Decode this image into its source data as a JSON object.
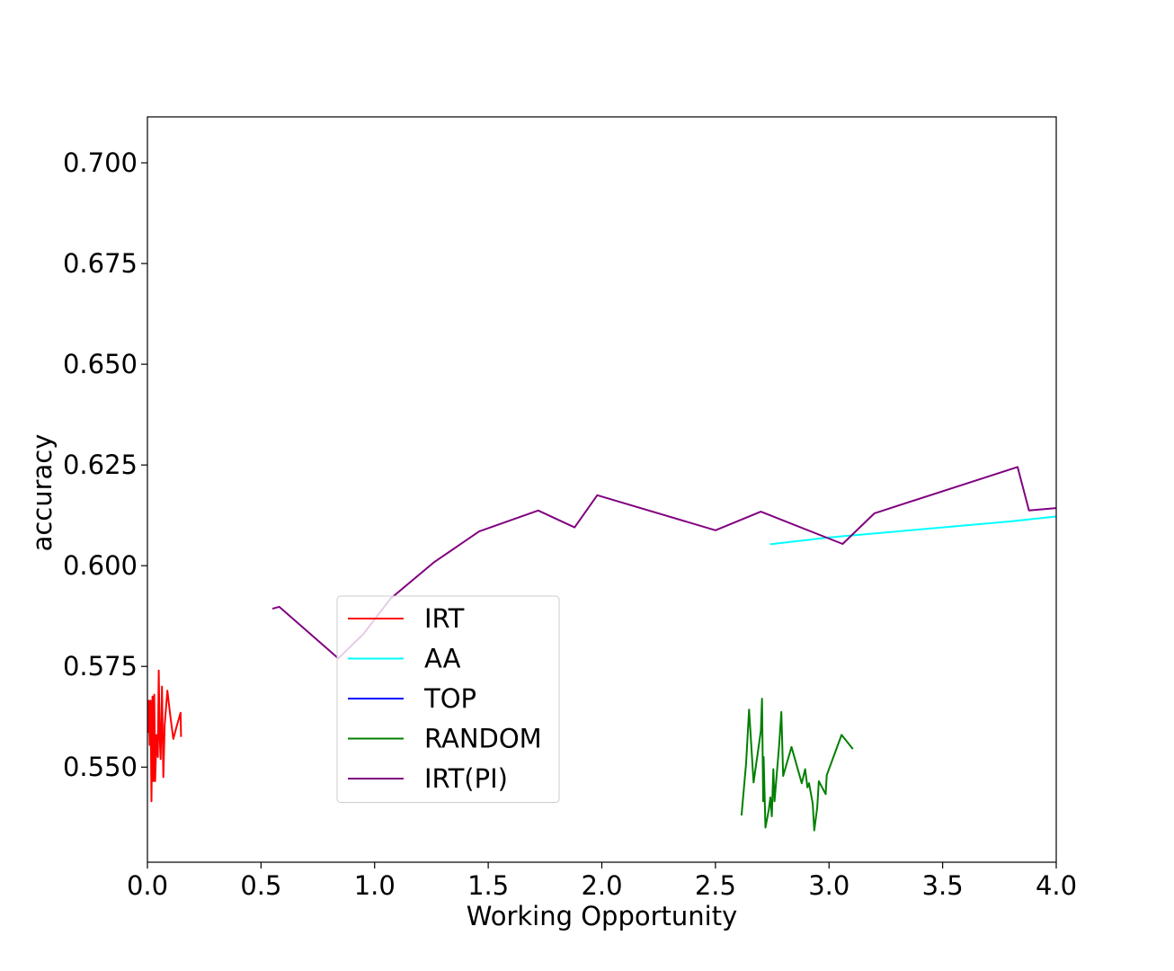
{
  "chart_data": {
    "type": "line",
    "xlabel": "Working Opportunity",
    "ylabel": "accuracy",
    "xlim": [
      0.0,
      4.0
    ],
    "ylim": [
      0.5264,
      0.7114
    ],
    "x_ticks": [
      "0.0",
      "0.5",
      "1.0",
      "1.5",
      "2.0",
      "2.5",
      "3.0",
      "3.5",
      "4.0"
    ],
    "y_ticks": [
      "0.550",
      "0.575",
      "0.600",
      "0.625",
      "0.650",
      "0.675",
      "0.700"
    ],
    "legend_position": "center-left",
    "grid": false,
    "series": [
      {
        "name": "IRT",
        "color": "#ff0000",
        "points": [
          [
            0.002,
            0.5585
          ],
          [
            0.006,
            0.5665
          ],
          [
            0.01,
            0.5555
          ],
          [
            0.014,
            0.5665
          ],
          [
            0.018,
            0.5415
          ],
          [
            0.022,
            0.5675
          ],
          [
            0.026,
            0.5465
          ],
          [
            0.03,
            0.568
          ],
          [
            0.034,
            0.5465
          ],
          [
            0.04,
            0.558
          ],
          [
            0.046,
            0.5525
          ],
          [
            0.05,
            0.574
          ],
          [
            0.054,
            0.558
          ],
          [
            0.058,
            0.552
          ],
          [
            0.064,
            0.57
          ],
          [
            0.07,
            0.5475
          ],
          [
            0.076,
            0.5605
          ],
          [
            0.088,
            0.569
          ],
          [
            0.1,
            0.563
          ],
          [
            0.114,
            0.557
          ],
          [
            0.128,
            0.56
          ],
          [
            0.146,
            0.5635
          ],
          [
            0.148,
            0.5575
          ]
        ]
      },
      {
        "name": "AA",
        "color": "#00ffff",
        "points": [
          [
            2.74,
            0.6053
          ],
          [
            3.0,
            0.607
          ],
          [
            3.3,
            0.6085
          ],
          [
            3.6,
            0.61
          ],
          [
            3.8,
            0.611
          ],
          [
            4.0,
            0.6122
          ]
        ]
      },
      {
        "name": "TOP",
        "color": "#0000ff",
        "points": []
      },
      {
        "name": "RANDOM",
        "color": "#008000",
        "points": [
          [
            2.615,
            0.538
          ],
          [
            2.635,
            0.551
          ],
          [
            2.648,
            0.5643
          ],
          [
            2.668,
            0.5462
          ],
          [
            2.69,
            0.555
          ],
          [
            2.7,
            0.559
          ],
          [
            2.705,
            0.567
          ],
          [
            2.71,
            0.5415
          ],
          [
            2.712,
            0.5525
          ],
          [
            2.72,
            0.535
          ],
          [
            2.735,
            0.5395
          ],
          [
            2.742,
            0.5425
          ],
          [
            2.748,
            0.5378
          ],
          [
            2.755,
            0.5495
          ],
          [
            2.76,
            0.5415
          ],
          [
            2.78,
            0.555
          ],
          [
            2.79,
            0.5637
          ],
          [
            2.798,
            0.5478
          ],
          [
            2.835,
            0.555
          ],
          [
            2.88,
            0.546
          ],
          [
            2.895,
            0.5495
          ],
          [
            2.905,
            0.545
          ],
          [
            2.912,
            0.546
          ],
          [
            2.928,
            0.541
          ],
          [
            2.935,
            0.5343
          ],
          [
            2.948,
            0.54
          ],
          [
            2.955,
            0.5465
          ],
          [
            2.985,
            0.5433
          ],
          [
            2.99,
            0.548
          ],
          [
            3.055,
            0.558
          ],
          [
            3.105,
            0.5545
          ]
        ]
      },
      {
        "name": "IRT(PI)",
        "color": "#800080",
        "points": [
          [
            0.55,
            0.5893
          ],
          [
            0.58,
            0.5898
          ],
          [
            0.84,
            0.577
          ],
          [
            0.95,
            0.583
          ],
          [
            1.07,
            0.5918
          ],
          [
            1.26,
            0.6008
          ],
          [
            1.46,
            0.6085
          ],
          [
            1.72,
            0.6137
          ],
          [
            1.88,
            0.6095
          ],
          [
            1.98,
            0.6175
          ],
          [
            2.5,
            0.6088
          ],
          [
            2.7,
            0.6134
          ],
          [
            3.06,
            0.6054
          ],
          [
            3.2,
            0.613
          ],
          [
            3.83,
            0.6245
          ],
          [
            3.88,
            0.6137
          ],
          [
            4.0,
            0.6143
          ]
        ]
      }
    ]
  }
}
